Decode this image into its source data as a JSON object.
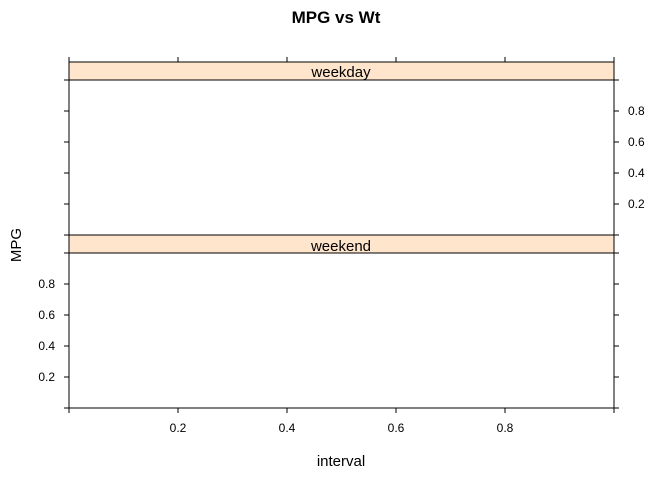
{
  "chart_data": {
    "type": "scatter",
    "title": "MPG vs Wt",
    "xlabel": "interval",
    "ylabel": "MPG",
    "xlim": [
      0,
      1
    ],
    "ylim": [
      0,
      1
    ],
    "x_ticks": [
      0.2,
      0.4,
      0.6,
      0.8
    ],
    "y_ticks": [
      0.2,
      0.4,
      0.6,
      0.8
    ],
    "panels": [
      {
        "label": "weekday",
        "points": []
      },
      {
        "label": "weekend",
        "points": []
      }
    ],
    "colors": {
      "strip_fill": "#FFE5CC",
      "frame": "#000000",
      "background": "#FFFFFF"
    }
  }
}
